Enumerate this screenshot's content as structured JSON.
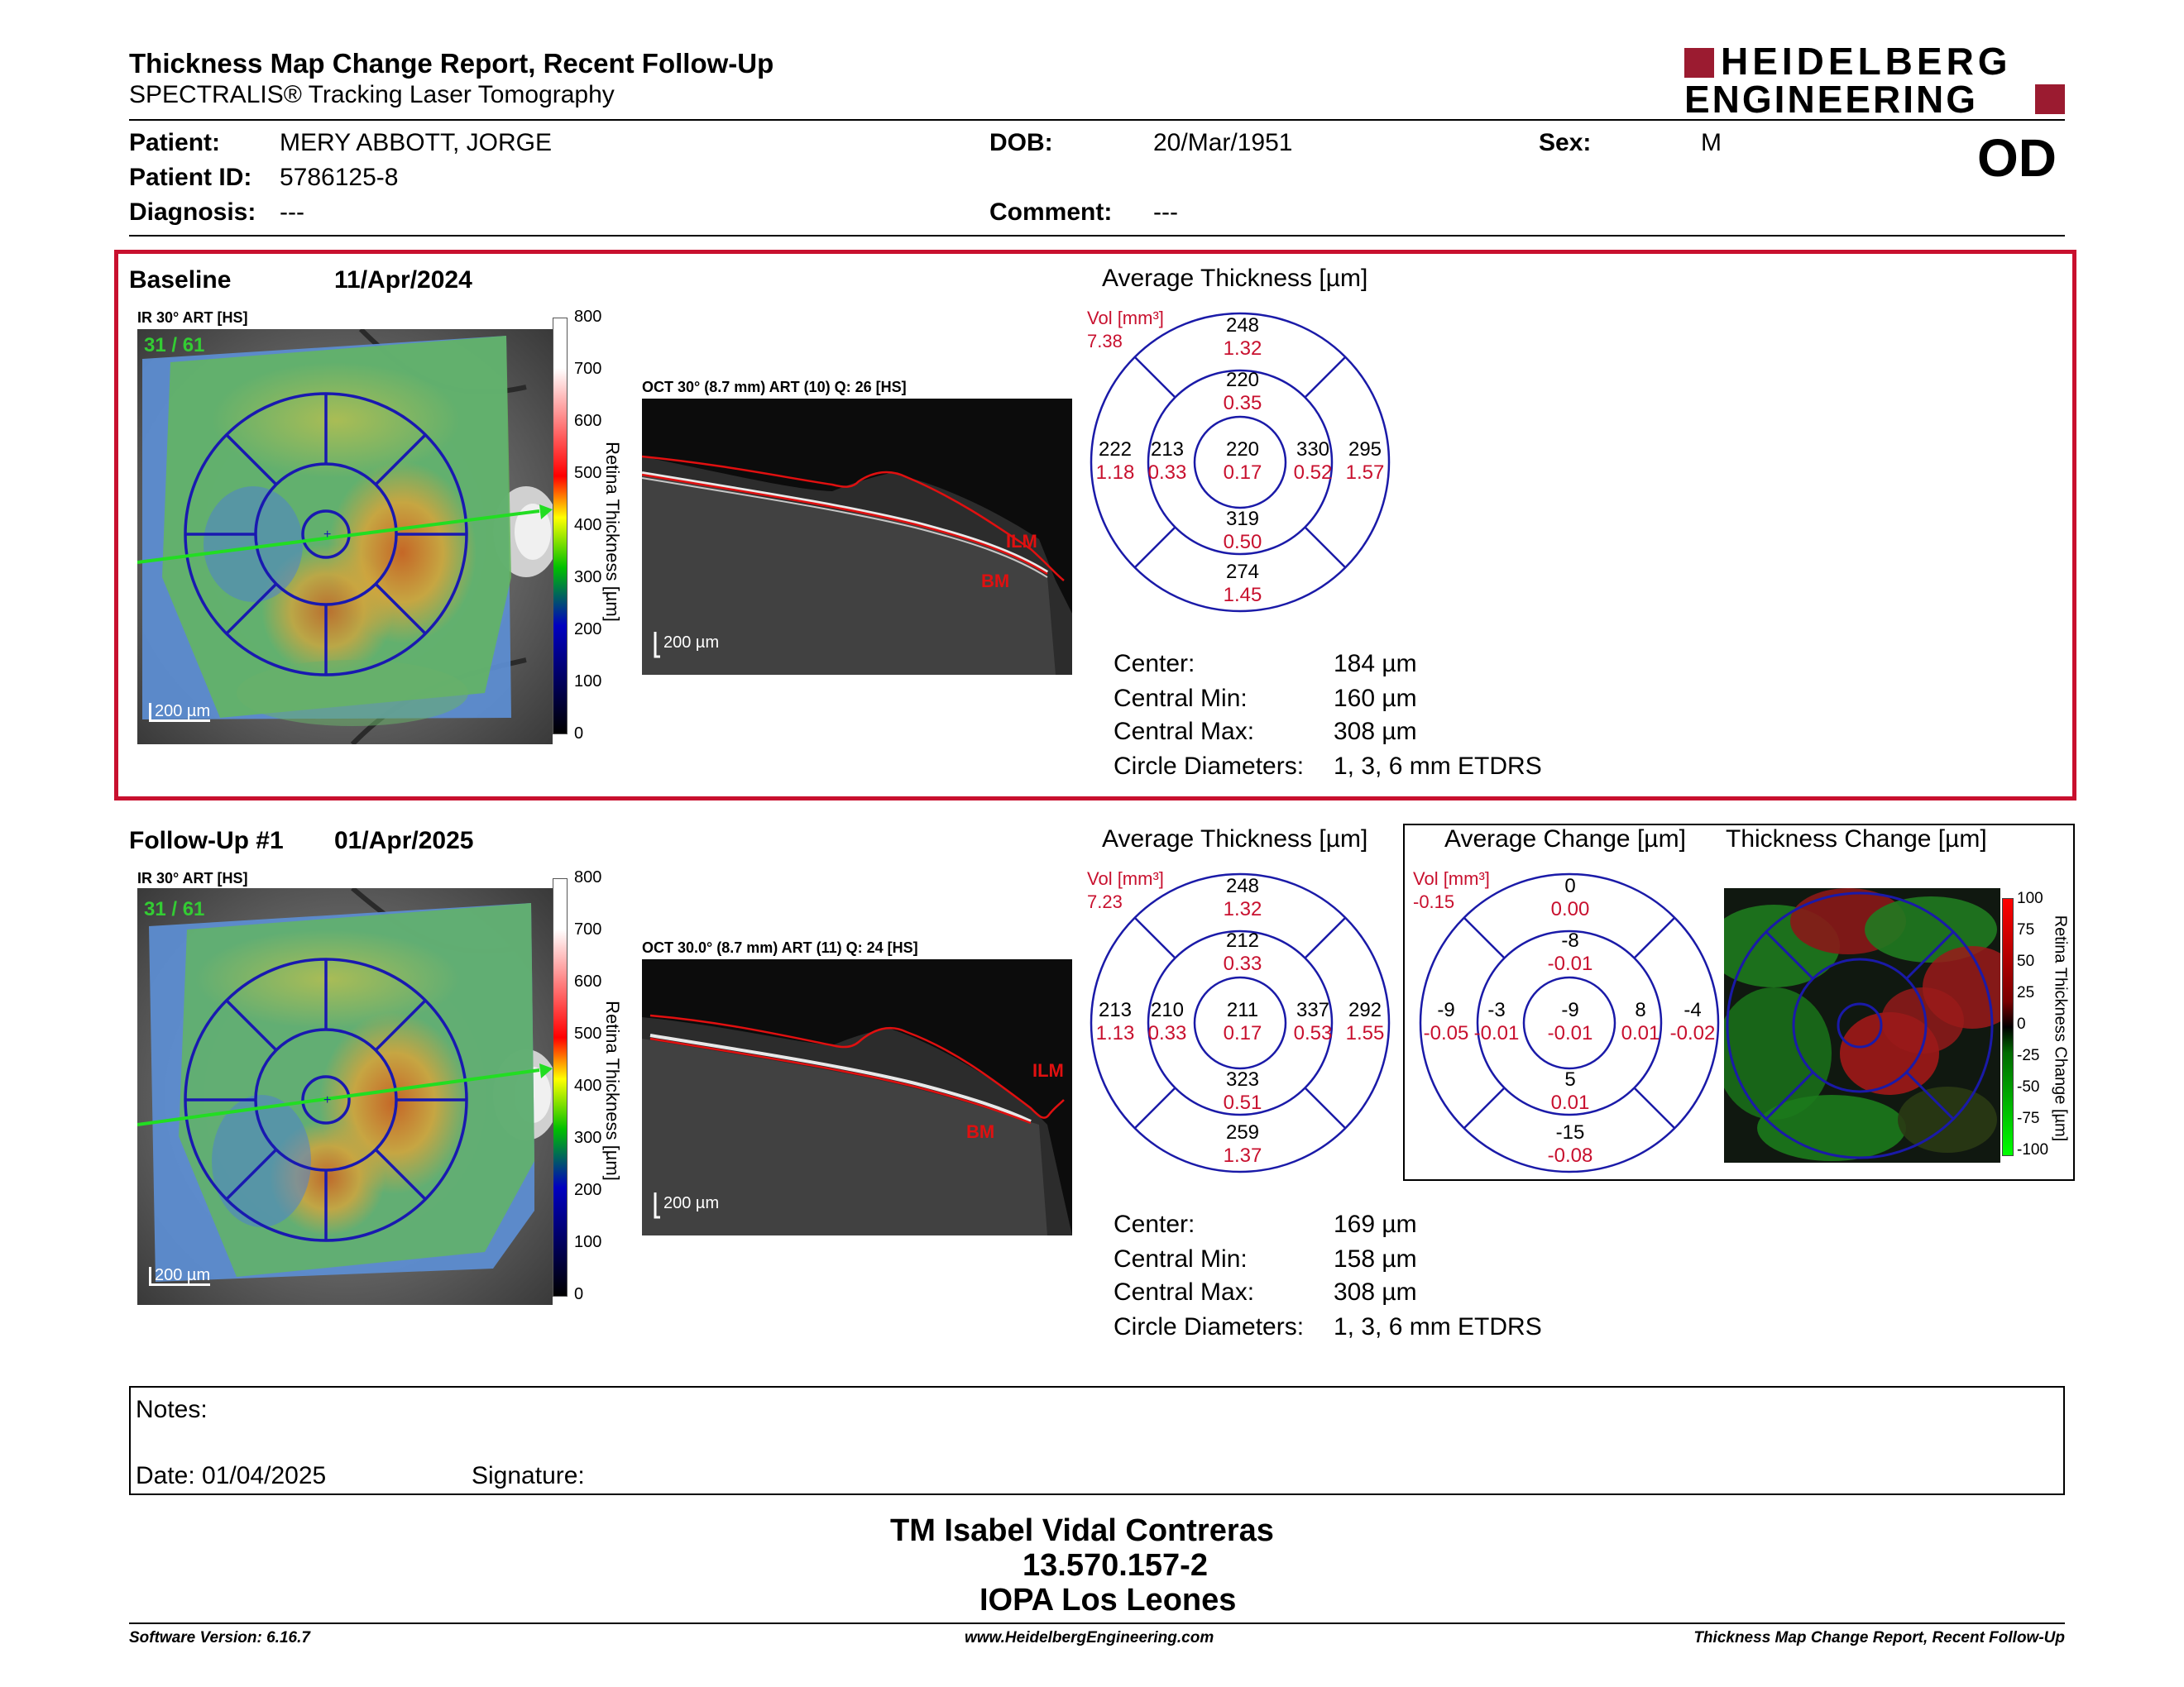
{
  "header": {
    "title": "Thickness Map Change Report, Recent Follow-Up",
    "subtitle": "SPECTRALIS® Tracking Laser Tomography",
    "brand_line1": "HEIDELBERG",
    "brand_line2": "ENGINEERING",
    "brand_color": "#9b1b30",
    "eye": "OD"
  },
  "patient": {
    "patient_label": "Patient:",
    "patient_value": "MERY ABBOTT, JORGE",
    "id_label": "Patient ID:",
    "id_value": "5786125-8",
    "diag_label": "Diagnosis:",
    "diag_value": "---",
    "dob_label": "DOB:",
    "dob_value": "20/Mar/1951",
    "comment_label": "Comment:",
    "comment_value": "---",
    "sex_label": "Sex:",
    "sex_value": "M"
  },
  "baseline": {
    "label": "Baseline",
    "date": "11/Apr/2024",
    "ir_label": "IR 30° ART [HS]",
    "frame_count": "31 / 61",
    "oct_label": "OCT 30° (8.7 mm) ART (10) Q: 26 [HS]",
    "scale_label": "200 µm",
    "colorbar_ticks": [
      "800",
      "700",
      "600",
      "500",
      "400",
      "300",
      "200",
      "100",
      "0"
    ],
    "colorbar_title": "Retina Thickness [µm]",
    "ilm": "ILM",
    "bm": "BM",
    "avg_title": "Average Thickness [µm]",
    "vol_label": "Vol [mm³]",
    "vol_total": "7.38",
    "sectors": {
      "center": {
        "t": "220",
        "v": "0.17"
      },
      "inner_sup": {
        "t": "220",
        "v": "0.35"
      },
      "inner_inf": {
        "t": "319",
        "v": "0.50"
      },
      "inner_tmp": {
        "t": "213",
        "v": "0.33"
      },
      "inner_nas": {
        "t": "330",
        "v": "0.52"
      },
      "outer_sup": {
        "t": "248",
        "v": "1.32"
      },
      "outer_inf": {
        "t": "274",
        "v": "1.45"
      },
      "outer_tmp": {
        "t": "222",
        "v": "1.18"
      },
      "outer_nas": {
        "t": "295",
        "v": "1.57"
      }
    },
    "stats": {
      "center_label": "Center:",
      "center_value": "184 µm",
      "min_label": "Central Min:",
      "min_value": "160 µm",
      "max_label": "Central Max:",
      "max_value": "308 µm",
      "circ_label": "Circle Diameters:",
      "circ_value": "1, 3, 6 mm ETDRS"
    }
  },
  "followup": {
    "label": "Follow-Up #1",
    "date": "01/Apr/2025",
    "ir_label": "IR 30° ART [HS]",
    "frame_count": "31 / 61",
    "oct_label": "OCT 30.0° (8.7 mm) ART (11) Q: 24 [HS]",
    "scale_label": "200 µm",
    "colorbar_ticks": [
      "800",
      "700",
      "600",
      "500",
      "400",
      "300",
      "200",
      "100",
      "0"
    ],
    "colorbar_title": "Retina Thickness [µm]",
    "ilm": "ILM",
    "bm": "BM",
    "avg_title": "Average Thickness [µm]",
    "vol_label": "Vol [mm³]",
    "vol_total": "7.23",
    "sectors": {
      "center": {
        "t": "211",
        "v": "0.17"
      },
      "inner_sup": {
        "t": "212",
        "v": "0.33"
      },
      "inner_inf": {
        "t": "323",
        "v": "0.51"
      },
      "inner_tmp": {
        "t": "210",
        "v": "0.33"
      },
      "inner_nas": {
        "t": "337",
        "v": "0.53"
      },
      "outer_sup": {
        "t": "248",
        "v": "1.32"
      },
      "outer_inf": {
        "t": "259",
        "v": "1.37"
      },
      "outer_tmp": {
        "t": "213",
        "v": "1.13"
      },
      "outer_nas": {
        "t": "292",
        "v": "1.55"
      }
    },
    "stats": {
      "center_label": "Center:",
      "center_value": "169 µm",
      "min_label": "Central Min:",
      "min_value": "158 µm",
      "max_label": "Central Max:",
      "max_value": "308 µm",
      "circ_label": "Circle Diameters:",
      "circ_value": "1, 3, 6 mm ETDRS"
    },
    "change": {
      "avg_title": "Average Change [µm]",
      "vol_label": "Vol [mm³]",
      "vol_total": "-0.15",
      "sectors": {
        "center": {
          "t": "-9",
          "v": "-0.01"
        },
        "inner_sup": {
          "t": "-8",
          "v": "-0.01"
        },
        "inner_inf": {
          "t": "5",
          "v": "0.01"
        },
        "inner_tmp": {
          "t": "-3",
          "v": "-0.01"
        },
        "inner_nas": {
          "t": "8",
          "v": "0.01"
        },
        "outer_sup": {
          "t": "0",
          "v": "0.00"
        },
        "outer_inf": {
          "t": "-15",
          "v": "-0.08"
        },
        "outer_tmp": {
          "t": "-9",
          "v": "-0.05"
        },
        "outer_nas": {
          "t": "-4",
          "v": "-0.02"
        }
      },
      "map_title": "Thickness Change [µm]",
      "map_ticks": [
        "100",
        "75",
        "50",
        "25",
        "0",
        "-25",
        "-50",
        "-75",
        "-100"
      ],
      "map_bar_title": "Retina Thickness Change [µm]"
    }
  },
  "notes": {
    "notes_label": "Notes:",
    "date_label": "Date: 01/04/2025",
    "signature_label": "Signature:"
  },
  "signoff": {
    "name": "TM Isabel Vidal Contreras",
    "id": "13.570.157-2",
    "org": "IOPA Los Leones"
  },
  "footer": {
    "version": "Software Version: 6.16.7",
    "url": "www.HeidelbergEngineering.com",
    "report": "Thickness Map Change Report, Recent Follow-Up"
  },
  "colors": {
    "frame_red": "#c8102e",
    "etdrs_blue": "#1a1aa8",
    "volume_red": "#c8102e"
  }
}
